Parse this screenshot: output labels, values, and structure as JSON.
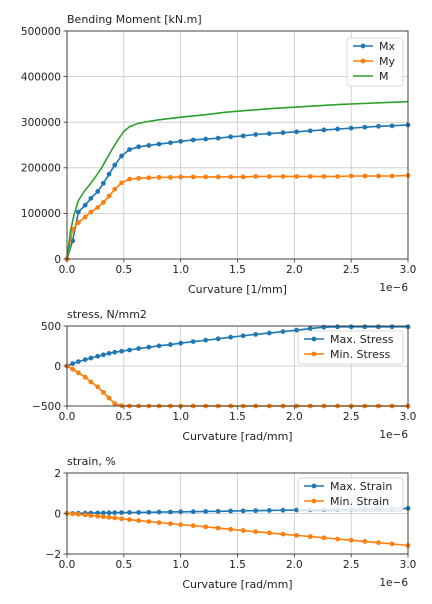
{
  "chart_data": [
    {
      "type": "line",
      "title": "Bending Moment [kN.m]",
      "xlabel": "Curvature [1/mm]",
      "ylabel": "",
      "x_scale_label": "1e−6",
      "xlim": [
        0,
        3.0
      ],
      "ylim": [
        0,
        500000
      ],
      "xticks": [
        0,
        0.5,
        1.0,
        1.5,
        2.0,
        2.5,
        3.0
      ],
      "xtick_labels": [
        "0.0",
        "0.5",
        "1.0",
        "1.5",
        "2.0",
        "2.5",
        "3.0"
      ],
      "yticks": [
        0,
        100000,
        200000,
        300000,
        400000,
        500000
      ],
      "ytick_labels": [
        "0",
        "100000",
        "200000",
        "300000",
        "400000",
        "500000"
      ],
      "grid": true,
      "legend_position": "top-right",
      "series": [
        {
          "name": "Mx",
          "color": "#1f77b4",
          "marker": true,
          "x": [
            0.0,
            0.05,
            0.1,
            0.16,
            0.21,
            0.27,
            0.32,
            0.37,
            0.42,
            0.48,
            0.55,
            0.63,
            0.72,
            0.81,
            0.91,
            1.0,
            1.11,
            1.22,
            1.33,
            1.44,
            1.55,
            1.66,
            1.78,
            1.9,
            2.02,
            2.14,
            2.26,
            2.38,
            2.5,
            2.62,
            2.74,
            2.86,
            3.0
          ],
          "y": [
            0,
            40000,
            103000,
            118000,
            133000,
            148000,
            166000,
            186000,
            206000,
            226000,
            240000,
            246000,
            249000,
            252000,
            255000,
            258000,
            261000,
            263000,
            265000,
            268000,
            270000,
            273000,
            275000,
            277000,
            279000,
            281000,
            283000,
            285000,
            287000,
            289000,
            291000,
            292000,
            294000
          ]
        },
        {
          "name": "My",
          "color": "#ff7f0e",
          "marker": true,
          "x": [
            0.0,
            0.05,
            0.1,
            0.16,
            0.21,
            0.27,
            0.32,
            0.37,
            0.42,
            0.48,
            0.55,
            0.63,
            0.72,
            0.81,
            0.91,
            1.0,
            1.11,
            1.22,
            1.33,
            1.44,
            1.55,
            1.66,
            1.78,
            1.9,
            2.02,
            2.14,
            2.26,
            2.38,
            2.5,
            2.62,
            2.74,
            2.86,
            3.0
          ],
          "y": [
            0,
            65000,
            80000,
            92000,
            103000,
            113000,
            124000,
            138000,
            153000,
            167000,
            175000,
            177000,
            178000,
            179000,
            179000,
            180000,
            180000,
            180000,
            180000,
            180000,
            180000,
            181000,
            181000,
            181000,
            181000,
            181000,
            181000,
            181000,
            182000,
            182000,
            182000,
            182000,
            183000
          ]
        },
        {
          "name": "M",
          "color": "#2ca02c",
          "marker": false,
          "x": [
            0.0,
            0.03,
            0.06,
            0.1,
            0.15,
            0.2,
            0.25,
            0.3,
            0.35,
            0.4,
            0.45,
            0.5,
            0.55,
            0.62,
            0.7,
            0.8,
            0.9,
            1.0,
            1.2,
            1.4,
            1.6,
            1.8,
            2.0,
            2.2,
            2.4,
            2.6,
            2.8,
            3.0
          ],
          "y": [
            0,
            60000,
            95000,
            128000,
            148000,
            163000,
            180000,
            198000,
            220000,
            242000,
            262000,
            280000,
            290000,
            297000,
            301000,
            305000,
            308000,
            311000,
            316000,
            322000,
            326000,
            330000,
            333000,
            336000,
            339000,
            341000,
            343000,
            345000
          ]
        }
      ]
    },
    {
      "type": "line",
      "title": "stress, N/mm2",
      "xlabel": "Curvature [rad/mm]",
      "ylabel": "",
      "x_scale_label": "1e−6",
      "xlim": [
        0,
        3.0
      ],
      "ylim": [
        -500,
        500
      ],
      "xticks": [
        0,
        0.5,
        1.0,
        1.5,
        2.0,
        2.5,
        3.0
      ],
      "xtick_labels": [
        "0.0",
        "0.5",
        "1.0",
        "1.5",
        "2.0",
        "2.5",
        "3.0"
      ],
      "yticks": [
        -500,
        0,
        500
      ],
      "ytick_labels": [
        "−500",
        "0",
        "500"
      ],
      "grid": true,
      "legend_position": "right",
      "series": [
        {
          "name": "Max. Stress",
          "color": "#1f77b4",
          "marker": true,
          "x": [
            0.0,
            0.05,
            0.1,
            0.16,
            0.21,
            0.27,
            0.32,
            0.37,
            0.42,
            0.48,
            0.55,
            0.63,
            0.72,
            0.81,
            0.91,
            1.0,
            1.11,
            1.22,
            1.33,
            1.44,
            1.55,
            1.66,
            1.78,
            1.9,
            2.02,
            2.14,
            2.26,
            2.38,
            2.5,
            2.62,
            2.74,
            2.86,
            3.0
          ],
          "y": [
            0,
            30,
            55,
            80,
            100,
            122,
            140,
            158,
            172,
            185,
            200,
            218,
            235,
            252,
            268,
            285,
            305,
            322,
            340,
            360,
            378,
            395,
            412,
            430,
            448,
            468,
            485,
            490,
            490,
            490,
            490,
            490,
            490
          ]
        },
        {
          "name": "Min. Stress",
          "color": "#ff7f0e",
          "marker": true,
          "x": [
            0.0,
            0.05,
            0.1,
            0.16,
            0.21,
            0.27,
            0.32,
            0.37,
            0.42,
            0.48,
            0.55,
            0.63,
            0.72,
            0.81,
            0.91,
            1.0,
            1.11,
            1.22,
            1.33,
            1.44,
            1.55,
            1.66,
            1.78,
            1.9,
            2.02,
            2.14,
            2.26,
            2.38,
            2.5,
            2.62,
            2.74,
            2.86,
            3.0
          ],
          "y": [
            0,
            -40,
            -85,
            -140,
            -200,
            -260,
            -330,
            -400,
            -470,
            -495,
            -500,
            -500,
            -500,
            -500,
            -500,
            -500,
            -500,
            -500,
            -500,
            -500,
            -500,
            -500,
            -500,
            -500,
            -500,
            -500,
            -500,
            -500,
            -500,
            -500,
            -500,
            -500,
            -500
          ]
        }
      ]
    },
    {
      "type": "line",
      "title": "strain, %",
      "xlabel": "Curvature [rad/mm]",
      "ylabel": "",
      "x_scale_label": "1e−6",
      "xlim": [
        0,
        3.0
      ],
      "ylim": [
        -2,
        2
      ],
      "xticks": [
        0,
        0.5,
        1.0,
        1.5,
        2.0,
        2.5,
        3.0
      ],
      "xtick_labels": [
        "0.0",
        "0.5",
        "1.0",
        "1.5",
        "2.0",
        "2.5",
        "3.0"
      ],
      "yticks": [
        -2,
        0,
        2
      ],
      "ytick_labels": [
        "−2",
        "0",
        "2"
      ],
      "grid": true,
      "legend_position": "top-right",
      "series": [
        {
          "name": "Max. Strain",
          "color": "#1f77b4",
          "marker": true,
          "x": [
            0.0,
            0.05,
            0.1,
            0.16,
            0.21,
            0.27,
            0.32,
            0.37,
            0.42,
            0.48,
            0.55,
            0.63,
            0.72,
            0.81,
            0.91,
            1.0,
            1.11,
            1.22,
            1.33,
            1.44,
            1.55,
            1.66,
            1.78,
            1.9,
            2.02,
            2.14,
            2.26,
            2.38,
            2.5,
            2.62,
            2.74,
            2.86,
            3.0
          ],
          "y": [
            0,
            0.005,
            0.01,
            0.015,
            0.02,
            0.025,
            0.03,
            0.035,
            0.04,
            0.045,
            0.05,
            0.055,
            0.06,
            0.07,
            0.075,
            0.085,
            0.09,
            0.1,
            0.11,
            0.12,
            0.13,
            0.14,
            0.15,
            0.16,
            0.17,
            0.18,
            0.19,
            0.2,
            0.21,
            0.22,
            0.23,
            0.24,
            0.25
          ]
        },
        {
          "name": "Min. Strain",
          "color": "#ff7f0e",
          "marker": true,
          "x": [
            0.0,
            0.05,
            0.1,
            0.16,
            0.21,
            0.27,
            0.32,
            0.37,
            0.42,
            0.48,
            0.55,
            0.63,
            0.72,
            0.81,
            0.91,
            1.0,
            1.11,
            1.22,
            1.33,
            1.44,
            1.55,
            1.66,
            1.78,
            1.9,
            2.02,
            2.14,
            2.26,
            2.38,
            2.5,
            2.62,
            2.74,
            2.86,
            3.0
          ],
          "y": [
            0,
            -0.02,
            -0.04,
            -0.07,
            -0.1,
            -0.13,
            -0.16,
            -0.19,
            -0.22,
            -0.26,
            -0.3,
            -0.35,
            -0.4,
            -0.45,
            -0.5,
            -0.55,
            -0.6,
            -0.66,
            -0.72,
            -0.78,
            -0.84,
            -0.9,
            -0.96,
            -1.02,
            -1.08,
            -1.14,
            -1.2,
            -1.26,
            -1.32,
            -1.38,
            -1.44,
            -1.5,
            -1.58
          ]
        }
      ]
    }
  ]
}
